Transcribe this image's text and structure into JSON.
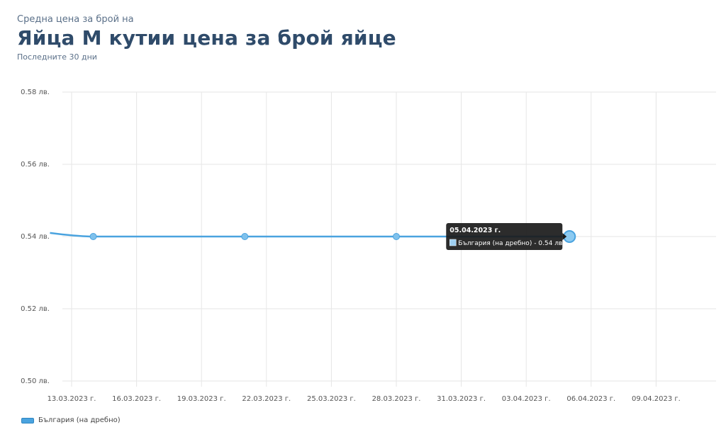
{
  "header": {
    "pretitle": "Средна цена за брой на",
    "title": "Яйца М кутии цена за брой яйце",
    "subtitle": "Последните 30 дни"
  },
  "chart_data": {
    "type": "line",
    "y_ticks": [
      "0.58 лв.",
      "0.56 лв.",
      "0.54 лв.",
      "0.52 лв.",
      "0.50 лв."
    ],
    "ylim": [
      0.5,
      0.58
    ],
    "x_ticks": [
      "13.03.2023 г.",
      "16.03.2023 г.",
      "19.03.2023 г.",
      "22.03.2023 г.",
      "25.03.2023 г.",
      "28.03.2023 г.",
      "31.03.2023 г.",
      "03.04.2023 г.",
      "06.04.2023 г.",
      "09.04.2023 г."
    ],
    "grid": true,
    "legend_position": "bottom-left",
    "series": [
      {
        "name": "България (на дребно)",
        "color": "#4aa3df",
        "points": [
          {
            "x": "12.03.2023",
            "y": 0.541
          },
          {
            "x": "14.03.2023",
            "y": 0.54
          },
          {
            "x": "21.03.2023",
            "y": 0.54
          },
          {
            "x": "28.03.2023",
            "y": 0.54
          },
          {
            "x": "05.04.2023",
            "y": 0.54
          }
        ]
      }
    ],
    "tooltip": {
      "date": "05.04.2023 г.",
      "text": "България (на дребно) - 0.54 лв."
    }
  }
}
